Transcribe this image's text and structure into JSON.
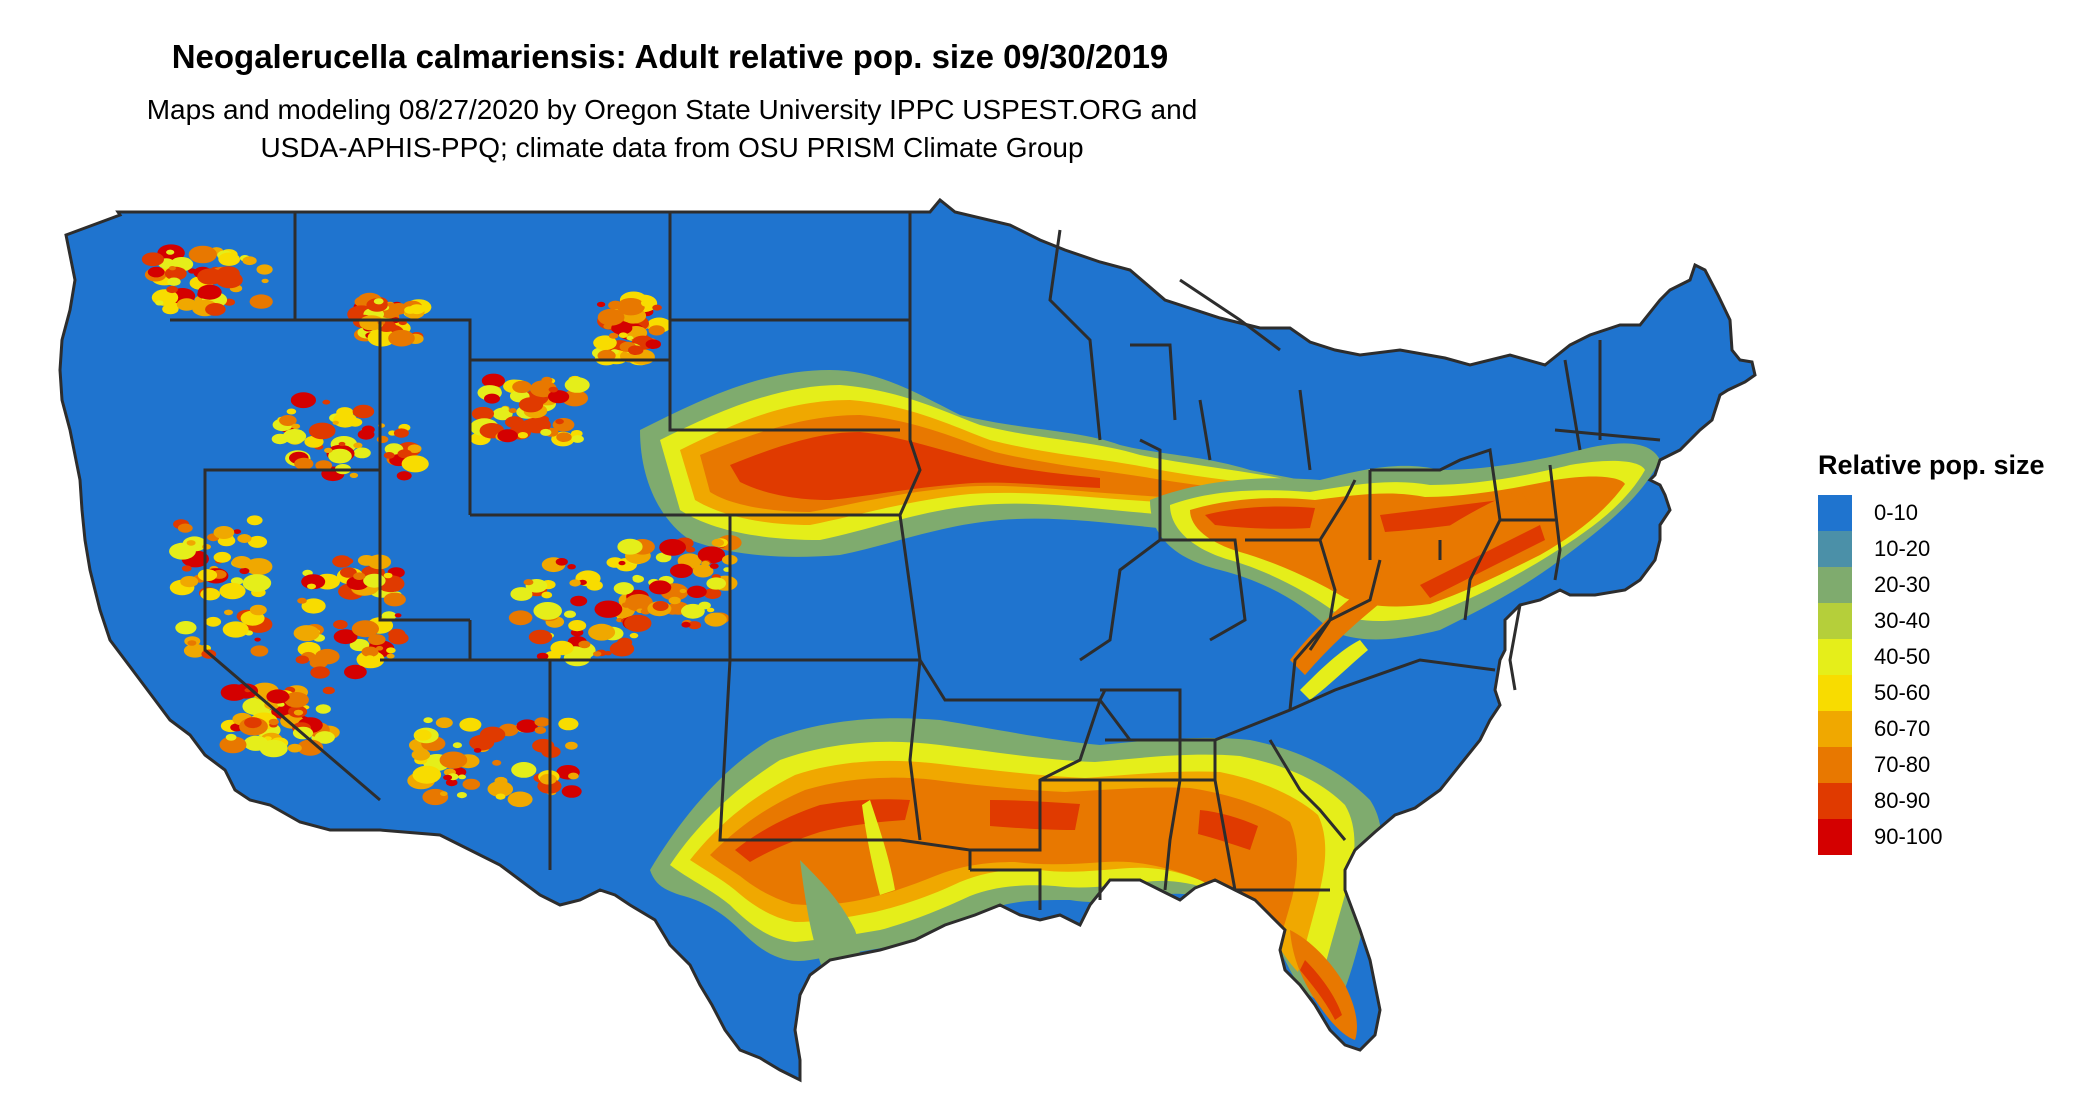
{
  "title": "Neogalerucella calmariensis: Adult relative pop. size 09/30/2019",
  "subtitle_line1": "Maps and modeling 08/27/2020 by Oregon State University IPPC USPEST.ORG and",
  "subtitle_line2": "USDA-APHIS-PPQ; climate data from OSU PRISM Climate Group",
  "legend": {
    "title": "Relative pop. size",
    "items": [
      {
        "label": "0-10",
        "color": "#1f74cf"
      },
      {
        "label": "10-20",
        "color": "#4b90a8"
      },
      {
        "label": "20-30",
        "color": "#7fab6e"
      },
      {
        "label": "30-40",
        "color": "#b5cf3a"
      },
      {
        "label": "40-50",
        "color": "#e5ee1a"
      },
      {
        "label": "50-60",
        "color": "#f8dc00"
      },
      {
        "label": "60-70",
        "color": "#f0a800"
      },
      {
        "label": "70-80",
        "color": "#e87800"
      },
      {
        "label": "80-90",
        "color": "#e03a00"
      },
      {
        "label": "90-100",
        "color": "#d40000"
      }
    ]
  },
  "map": {
    "region": "contiguous United States",
    "base_color": "#1f74cf",
    "border_color": "#2d2d2d"
  }
}
